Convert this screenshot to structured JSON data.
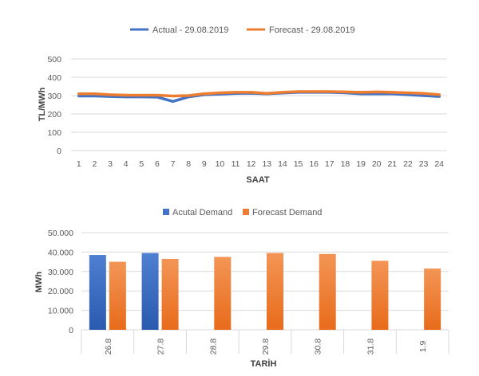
{
  "chart_data": [
    {
      "type": "line",
      "title": "",
      "xlabel": "SAAT",
      "ylabel": "TL/MWh",
      "ylim": [
        0,
        500
      ],
      "yticks": [
        "500",
        "400",
        "300",
        "200",
        "100",
        "0"
      ],
      "yticks_num": [
        500,
        400,
        300,
        200,
        100,
        0
      ],
      "categories": [
        "1",
        "2",
        "3",
        "4",
        "5",
        "6",
        "7",
        "8",
        "9",
        "10",
        "11",
        "12",
        "13",
        "14",
        "15",
        "16",
        "17",
        "18",
        "19",
        "20",
        "21",
        "22",
        "23",
        "24"
      ],
      "grid": true,
      "legend": "top-center",
      "series": [
        {
          "name": "Actual - 29.08.2019",
          "color": "#4472C4",
          "values": [
            298,
            298,
            295,
            293,
            293,
            292,
            268,
            293,
            305,
            308,
            312,
            313,
            310,
            314,
            318,
            318,
            318,
            315,
            310,
            310,
            310,
            305,
            300,
            295
          ]
        },
        {
          "name": "Forecast - 29.08.2019",
          "color": "#ED7D31",
          "values": [
            310,
            310,
            305,
            302,
            302,
            302,
            298,
            300,
            310,
            315,
            318,
            318,
            312,
            318,
            322,
            322,
            322,
            320,
            318,
            320,
            318,
            315,
            312,
            305
          ]
        }
      ]
    },
    {
      "type": "bar",
      "title": "",
      "xlabel": "TARİH",
      "ylabel": "MWh",
      "ylim": [
        0,
        50000
      ],
      "yticks": [
        "50.000",
        "40.000",
        "30.000",
        "20.000",
        "10.000",
        "0"
      ],
      "yticks_num": [
        50000,
        40000,
        30000,
        20000,
        10000,
        0
      ],
      "categories": [
        "26.8",
        "27.8",
        "28.8",
        "29.8",
        "30.8",
        "31.8",
        "1.9"
      ],
      "grid": true,
      "legend": "top-center",
      "series": [
        {
          "name": "Acutal Demand",
          "color": "#4472C4",
          "values": [
            38500,
            39500,
            null,
            null,
            null,
            null,
            null
          ]
        },
        {
          "name": "Forecast Demand",
          "color": "#ED7D31",
          "values": [
            35000,
            36500,
            37500,
            39500,
            39000,
            35500,
            31500
          ]
        }
      ]
    }
  ]
}
